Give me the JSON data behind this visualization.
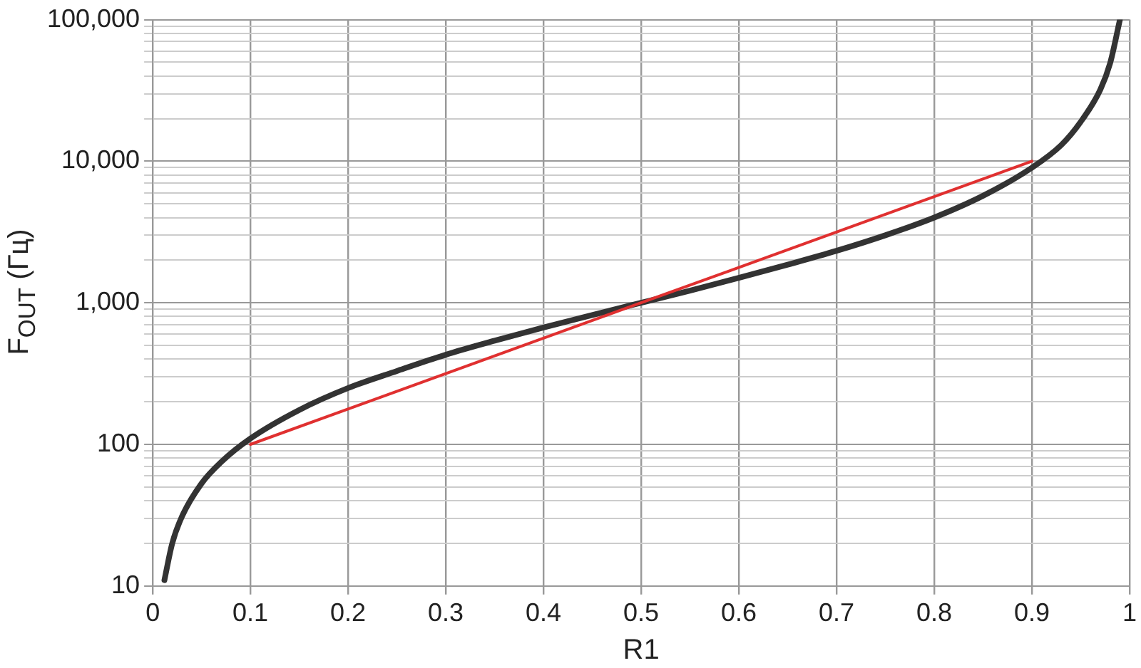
{
  "chart_data": {
    "type": "line",
    "xlabel": "R1",
    "ylabel": "F$_{OUT}$ (Гц)",
    "log": "y",
    "grid": true,
    "marker": "none",
    "line_style": "solid",
    "xlim": [
      0,
      1
    ],
    "xticks": [
      0,
      0.1,
      0.2,
      0.3,
      0.4,
      0.5,
      0.6,
      0.7,
      0.8,
      0.9,
      1
    ],
    "ylim": [
      10,
      100000
    ],
    "yticks": [
      {
        "value": 10,
        "label": "10"
      },
      {
        "value": 20,
        "label": null
      },
      {
        "value": 30,
        "label": null
      },
      {
        "value": 40,
        "label": null
      },
      {
        "value": 50,
        "label": null
      },
      {
        "value": 60,
        "label": null
      },
      {
        "value": 70,
        "label": null
      },
      {
        "value": 80,
        "label": null
      },
      {
        "value": 90,
        "label": null
      },
      {
        "value": 100,
        "label": "100"
      },
      {
        "value": 200,
        "label": null
      },
      {
        "value": 300,
        "label": null
      },
      {
        "value": 400,
        "label": null
      },
      {
        "value": 500,
        "label": null
      },
      {
        "value": 600,
        "label": null
      },
      {
        "value": 700,
        "label": null
      },
      {
        "value": 800,
        "label": null
      },
      {
        "value": 900,
        "label": null
      },
      {
        "value": 1000,
        "label": "1,000"
      },
      {
        "value": 2000,
        "label": null
      },
      {
        "value": 3000,
        "label": null
      },
      {
        "value": 4000,
        "label": null
      },
      {
        "value": 5000,
        "label": null
      },
      {
        "value": 6000,
        "label": null
      },
      {
        "value": 7000,
        "label": null
      },
      {
        "value": 8000,
        "label": null
      },
      {
        "value": 9000,
        "label": null
      },
      {
        "value": 10000,
        "label": "10,000"
      },
      {
        "value": 20000,
        "label": null
      },
      {
        "value": 30000,
        "label": null
      },
      {
        "value": 40000,
        "label": null
      },
      {
        "value": 50000,
        "label": null
      },
      {
        "value": 60000,
        "label": null
      },
      {
        "value": 70000,
        "label": null
      },
      {
        "value": 80000,
        "label": null
      },
      {
        "value": 90000,
        "label": null
      },
      {
        "value": 100000,
        "label": "100,000"
      }
    ],
    "series": [
      {
        "color": "#333333",
        "x": [
          0.012,
          0.02,
          0.03,
          0.05,
          0.07,
          0.1,
          0.15,
          0.2,
          0.25,
          0.3,
          0.35,
          0.4,
          0.45,
          0.5,
          0.55,
          0.6,
          0.65,
          0.7,
          0.75,
          0.8,
          0.85,
          0.9,
          0.93,
          0.95,
          0.97,
          0.98,
          0.99
        ],
        "values": [
          11,
          20,
          31,
          53,
          75,
          110,
          175,
          250,
          330,
          430,
          540,
          670,
          820,
          1000,
          1220,
          1500,
          1860,
          2330,
          3000,
          4000,
          5700,
          9000,
          13000,
          19000,
          32000,
          49000,
          99000
        ]
      },
      {
        "color": "#e03030",
        "x": [
          0.1,
          0.9
        ],
        "values": [
          100,
          10000
        ]
      }
    ]
  }
}
